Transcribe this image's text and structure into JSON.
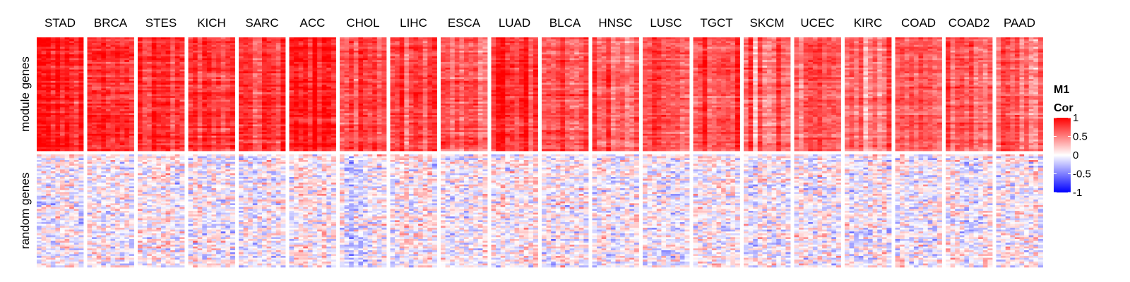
{
  "chart_data": {
    "type": "heatmap",
    "columns": [
      "STAD",
      "BRCA",
      "STES",
      "KICH",
      "SARC",
      "ACC",
      "CHOL",
      "LIHC",
      "ESCA",
      "LUAD",
      "BLCA",
      "HNSC",
      "LUSC",
      "TGCT",
      "SKCM",
      "UCEC",
      "KIRC",
      "COAD",
      "COAD2",
      "PAAD"
    ],
    "row_groups": [
      {
        "name": "module genes",
        "mean_cor": [
          0.84,
          0.78,
          0.8,
          0.8,
          0.72,
          0.85,
          0.62,
          0.62,
          0.64,
          0.74,
          0.58,
          0.56,
          0.6,
          0.72,
          0.54,
          0.63,
          0.48,
          0.58,
          0.56,
          0.52
        ]
      },
      {
        "name": "random genes",
        "mean_cor": [
          -0.02,
          0.0,
          0.02,
          0.04,
          0.03,
          0.05,
          -0.05,
          0.05,
          0.03,
          0.04,
          0.02,
          0.0,
          0.02,
          0.05,
          0.0,
          0.0,
          0.0,
          0.0,
          0.0,
          0.02
        ]
      }
    ],
    "legend": {
      "title_line1": "M1",
      "title_line2": "Cor",
      "tick_labels": [
        "1",
        "0.5",
        "0",
        "-0.5",
        "-1"
      ],
      "tick_values": [
        1,
        0.5,
        0,
        -0.5,
        -1
      ],
      "range": [
        -1,
        1
      ],
      "colors": {
        "high": "#ff0000",
        "mid": "#ffffff",
        "low": "#0000ff"
      },
      "placement": "right"
    }
  }
}
